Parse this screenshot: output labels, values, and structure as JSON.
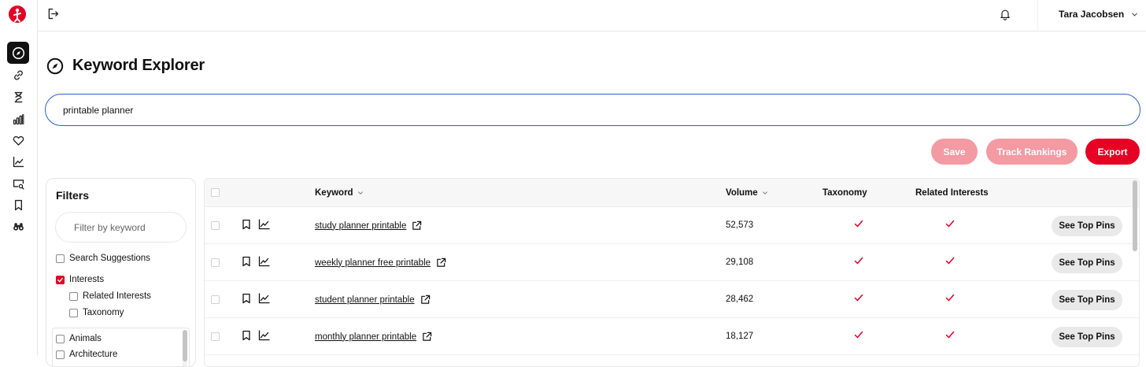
{
  "header": {
    "user_name": "Tara Jacobsen"
  },
  "page": {
    "title": "Keyword Explorer"
  },
  "search": {
    "value": "printable planner"
  },
  "actions": {
    "save_label": "Save",
    "track_label": "Track Rankings",
    "export_label": "Export"
  },
  "filters": {
    "title": "Filters",
    "placeholder": "Filter by keyword",
    "options": [
      {
        "label": "Search Suggestions",
        "checked": false
      },
      {
        "label": "Interests",
        "checked": true
      },
      {
        "label": "Related Interests",
        "checked": false
      },
      {
        "label": "Taxonomy",
        "checked": false
      }
    ],
    "categories": [
      "Animals",
      "Architecture"
    ]
  },
  "table": {
    "columns": {
      "keyword": "Keyword",
      "volume": "Volume",
      "taxonomy": "Taxonomy",
      "related": "Related Interests"
    },
    "button_label": "See Top Pins",
    "rows": [
      {
        "keyword": "study planner printable",
        "volume": "52,573",
        "taxonomy": true,
        "related": true
      },
      {
        "keyword": "weekly planner free printable",
        "volume": "29,108",
        "taxonomy": true,
        "related": true
      },
      {
        "keyword": "student planner printable",
        "volume": "28,462",
        "taxonomy": true,
        "related": true
      },
      {
        "keyword": "monthly planner printable",
        "volume": "18,127",
        "taxonomy": true,
        "related": true
      }
    ]
  },
  "colors": {
    "brand": "#e60023",
    "brand_disabled": "#f39aa3",
    "search_border": "#2b60c9"
  }
}
